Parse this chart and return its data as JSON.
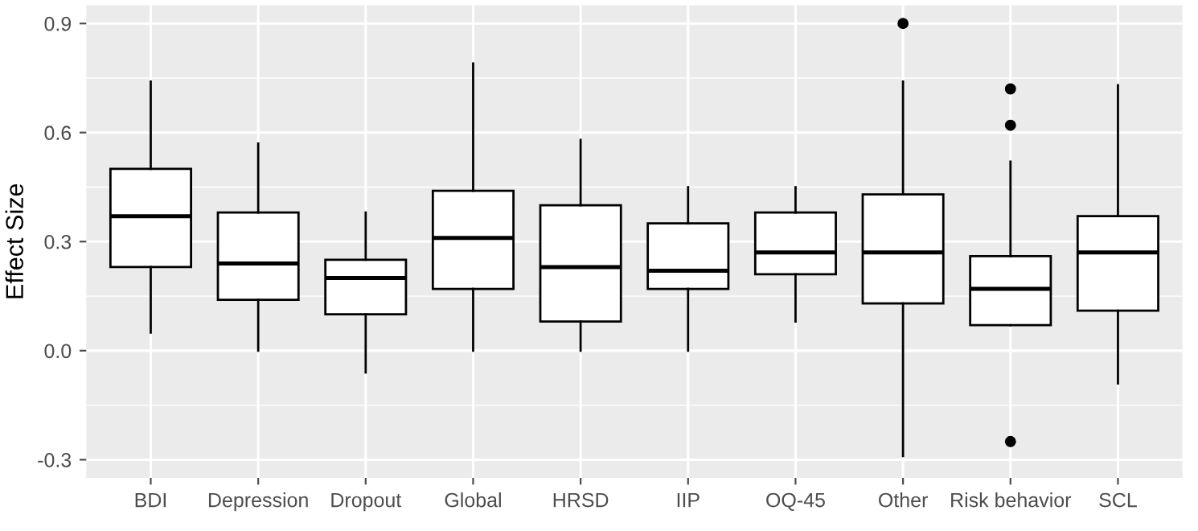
{
  "chart_data": {
    "type": "box",
    "ylabel": "Effect Size",
    "categories": [
      "BDI",
      "Depression",
      "Dropout",
      "Global",
      "HRSD",
      "IIP",
      "OQ-45",
      "Other",
      "Risk behavior",
      "SCL"
    ],
    "boxes": [
      {
        "low": 0.05,
        "q1": 0.23,
        "median": 0.37,
        "q3": 0.5,
        "high": 0.74
      },
      {
        "low": 0.0,
        "q1": 0.14,
        "median": 0.24,
        "q3": 0.38,
        "high": 0.57
      },
      {
        "low": -0.06,
        "q1": 0.1,
        "median": 0.2,
        "q3": 0.25,
        "high": 0.38
      },
      {
        "low": 0.0,
        "q1": 0.17,
        "median": 0.31,
        "q3": 0.44,
        "high": 0.79
      },
      {
        "low": 0.0,
        "q1": 0.08,
        "median": 0.23,
        "q3": 0.4,
        "high": 0.58
      },
      {
        "low": 0.0,
        "q1": 0.17,
        "median": 0.22,
        "q3": 0.35,
        "high": 0.45
      },
      {
        "low": 0.08,
        "q1": 0.21,
        "median": 0.27,
        "q3": 0.38,
        "high": 0.45
      },
      {
        "low": -0.29,
        "q1": 0.13,
        "median": 0.27,
        "q3": 0.43,
        "high": 0.74,
        "outliers": [
          0.9
        ]
      },
      {
        "low": 0.07,
        "q1": 0.07,
        "median": 0.17,
        "q3": 0.26,
        "high": 0.52,
        "outliers": [
          0.72,
          0.62,
          -0.25
        ]
      },
      {
        "low": -0.09,
        "q1": 0.11,
        "median": 0.27,
        "q3": 0.37,
        "high": 0.73
      }
    ],
    "color": "#000000",
    "ylim": [
      -0.35,
      0.95
    ],
    "yticks": [
      {
        "value": -0.3,
        "label": "-0.3"
      },
      {
        "value": 0.0,
        "label": "0.0"
      },
      {
        "value": 0.3,
        "label": "0.3"
      },
      {
        "value": 0.6,
        "label": "0.6"
      },
      {
        "value": 0.9,
        "label": "0.9"
      }
    ],
    "grid": true
  }
}
